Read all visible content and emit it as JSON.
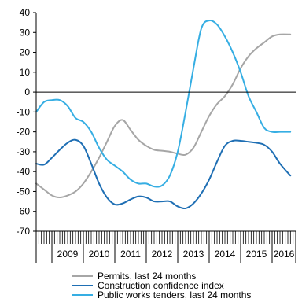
{
  "chart_data": {
    "type": "line",
    "title": "",
    "xlabel": "",
    "ylabel": "",
    "ylim": [
      -70,
      40
    ],
    "yticks": [
      40,
      30,
      20,
      10,
      0,
      -10,
      -20,
      -30,
      -40,
      -50,
      -60,
      -70
    ],
    "xlim": [
      2008.5,
      2016.75
    ],
    "year_labels": [
      "2009",
      "2010",
      "2011",
      "2012",
      "2013",
      "2014",
      "2015",
      "2016"
    ],
    "grid": false,
    "legend_position": "bottom",
    "series": [
      {
        "name": "Permits, last 24 months",
        "color": "#a6a6a6",
        "x": [
          2008.5,
          2008.75,
          2009.0,
          2009.25,
          2009.5,
          2009.75,
          2010.0,
          2010.25,
          2010.5,
          2010.75,
          2011.0,
          2011.25,
          2011.5,
          2011.75,
          2012.0,
          2012.25,
          2012.5,
          2012.75,
          2013.0,
          2013.25,
          2013.5,
          2013.75,
          2014.0,
          2014.25,
          2014.5,
          2014.75,
          2015.0,
          2015.25,
          2015.5,
          2015.75,
          2016.0,
          2016.25,
          2016.58
        ],
        "y": [
          -46,
          -49,
          -52,
          -53,
          -52,
          -50,
          -46,
          -40,
          -33,
          -25,
          -17,
          -14,
          -19,
          -24,
          -27,
          -29,
          -29.5,
          -30,
          -31,
          -31.5,
          -28,
          -20,
          -12,
          -6,
          -2,
          4,
          12,
          18,
          22,
          25,
          28,
          29,
          29
        ]
      },
      {
        "name": "Construction confidence index",
        "color": "#1f6fb4",
        "x": [
          2008.5,
          2008.75,
          2009.0,
          2009.25,
          2009.5,
          2009.75,
          2010.0,
          2010.25,
          2010.5,
          2010.75,
          2011.0,
          2011.25,
          2011.5,
          2011.75,
          2012.0,
          2012.25,
          2012.5,
          2012.75,
          2013.0,
          2013.25,
          2013.5,
          2013.75,
          2014.0,
          2014.25,
          2014.5,
          2014.75,
          2015.0,
          2015.25,
          2015.5,
          2015.75,
          2016.0,
          2016.25,
          2016.58
        ],
        "y": [
          -36,
          -36.5,
          -33,
          -29,
          -25.5,
          -24,
          -27,
          -36,
          -46,
          -53,
          -56.5,
          -56,
          -54,
          -52.5,
          -53,
          -55,
          -55,
          -55,
          -57.5,
          -58.5,
          -56,
          -51,
          -44,
          -35,
          -27,
          -24.5,
          -24.5,
          -25,
          -25.5,
          -26.5,
          -30,
          -36,
          -42
        ]
      },
      {
        "name": "Public works tenders, last 24 months",
        "color": "#36aee3",
        "x": [
          2008.5,
          2008.75,
          2009.0,
          2009.25,
          2009.5,
          2009.75,
          2010.0,
          2010.25,
          2010.5,
          2010.75,
          2011.0,
          2011.25,
          2011.5,
          2011.75,
          2012.0,
          2012.25,
          2012.5,
          2012.75,
          2013.0,
          2013.25,
          2013.5,
          2013.75,
          2014.0,
          2014.25,
          2014.5,
          2014.75,
          2015.0,
          2015.25,
          2015.5,
          2015.75,
          2016.0,
          2016.25,
          2016.58
        ],
        "y": [
          -10,
          -5,
          -4,
          -4,
          -7,
          -13,
          -15,
          -20,
          -28,
          -34,
          -37,
          -40,
          -44,
          -46,
          -46,
          -47.5,
          -47,
          -42,
          -30,
          -10,
          12,
          32,
          36,
          34,
          28,
          20,
          10,
          -2,
          -10,
          -18,
          -20,
          -20,
          -20
        ]
      }
    ]
  }
}
